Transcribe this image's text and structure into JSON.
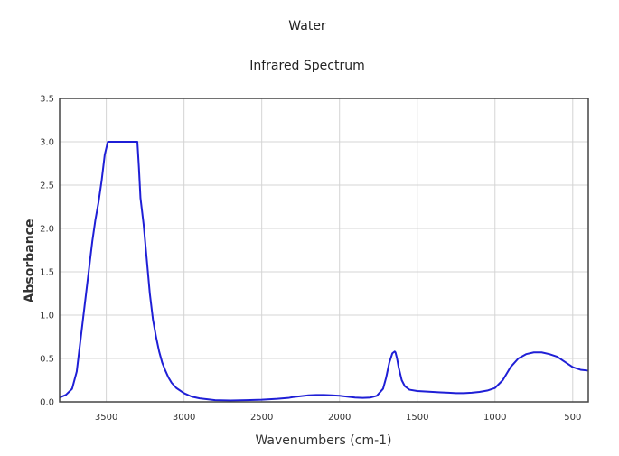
{
  "chart_data": {
    "type": "line",
    "title": "Water",
    "subtitle": "Infrared Spectrum",
    "xlabel": "Wavenumbers (cm-1)",
    "ylabel": "Absorbance",
    "xlim": [
      3800,
      400
    ],
    "ylim": [
      0,
      3.5
    ],
    "x_reversed": true,
    "grid": true,
    "legend": "none",
    "x_ticks": [
      3500,
      3000,
      2500,
      2000,
      1500,
      1000,
      500
    ],
    "y_ticks": [
      0.0,
      0.5,
      1.0,
      1.5,
      2.0,
      2.5,
      3.0,
      3.5
    ],
    "series": [
      {
        "color": "#1f1fd6",
        "x": [
          3800,
          3760,
          3720,
          3690,
          3670,
          3650,
          3630,
          3610,
          3590,
          3570,
          3550,
          3530,
          3510,
          3490,
          3475,
          3460,
          3455,
          3450,
          3440,
          3420,
          3400,
          3380,
          3350,
          3320,
          3305,
          3300,
          3290,
          3280,
          3260,
          3240,
          3220,
          3200,
          3180,
          3160,
          3140,
          3120,
          3100,
          3080,
          3050,
          3000,
          2950,
          2900,
          2850,
          2800,
          2700,
          2600,
          2500,
          2400,
          2330,
          2300,
          2250,
          2200,
          2150,
          2100,
          2050,
          2000,
          1950,
          1900,
          1850,
          1800,
          1760,
          1720,
          1700,
          1680,
          1660,
          1645,
          1640,
          1630,
          1620,
          1600,
          1580,
          1550,
          1500,
          1450,
          1400,
          1350,
          1300,
          1250,
          1200,
          1150,
          1100,
          1050,
          1000,
          950,
          900,
          850,
          800,
          750,
          700,
          650,
          600,
          550,
          500,
          450,
          400
        ],
        "y": [
          0.05,
          0.08,
          0.15,
          0.35,
          0.65,
          0.95,
          1.25,
          1.55,
          1.85,
          2.1,
          2.3,
          2.55,
          2.85,
          3.0,
          3.0,
          3.0,
          3.0,
          3.0,
          3.0,
          3.0,
          3.0,
          3.0,
          3.0,
          3.0,
          3.0,
          3.0,
          2.7,
          2.35,
          2.05,
          1.65,
          1.25,
          0.95,
          0.75,
          0.58,
          0.45,
          0.36,
          0.28,
          0.22,
          0.16,
          0.1,
          0.06,
          0.04,
          0.03,
          0.02,
          0.015,
          0.02,
          0.025,
          0.035,
          0.045,
          0.055,
          0.065,
          0.075,
          0.08,
          0.08,
          0.075,
          0.07,
          0.06,
          0.05,
          0.045,
          0.05,
          0.07,
          0.15,
          0.28,
          0.45,
          0.56,
          0.58,
          0.57,
          0.5,
          0.4,
          0.25,
          0.18,
          0.14,
          0.125,
          0.12,
          0.115,
          0.11,
          0.105,
          0.1,
          0.1,
          0.105,
          0.115,
          0.13,
          0.16,
          0.25,
          0.4,
          0.5,
          0.55,
          0.57,
          0.57,
          0.55,
          0.52,
          0.46,
          0.4,
          0.37,
          0.36
        ]
      }
    ]
  }
}
